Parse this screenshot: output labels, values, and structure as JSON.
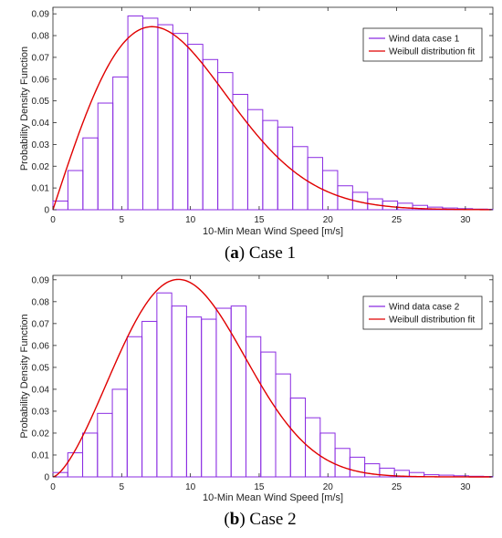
{
  "chart_data": [
    {
      "type": "bar",
      "xlabel": "10-Min Mean Wind Speed [m/s]",
      "ylabel": "Probability Density Function",
      "xlim": [
        0,
        32
      ],
      "ylim": [
        0,
        0.093
      ],
      "xticks": [
        "0",
        "5",
        "10",
        "15",
        "20",
        "25",
        "30"
      ],
      "yticks": [
        "0",
        "0.01",
        "0.02",
        "0.03",
        "0.04",
        "0.05",
        "0.06",
        "0.07",
        "0.08",
        "0.09"
      ],
      "bin_width": 1.09,
      "bin_start": 0,
      "series": [
        {
          "name": "Wind data case 1",
          "kind": "histogram",
          "color": "#8a2be2",
          "values": [
            0.004,
            0.018,
            0.033,
            0.049,
            0.061,
            0.089,
            0.088,
            0.085,
            0.081,
            0.076,
            0.069,
            0.063,
            0.053,
            0.046,
            0.041,
            0.038,
            0.029,
            0.024,
            0.018,
            0.011,
            0.008,
            0.005,
            0.004,
            0.003,
            0.002,
            0.0012,
            0.0008,
            0.0005,
            0.0003,
            0.0002
          ]
        },
        {
          "name": "Weibull distribution fit",
          "kind": "line",
          "color": "#e00000",
          "weibull": {
            "k": 2.0,
            "lambda": 10.2
          }
        }
      ],
      "legend_position": "top-right",
      "caption_label": "a",
      "caption_text": "Case 1"
    },
    {
      "type": "bar",
      "xlabel": "10-Min Mean Wind Speed [m/s]",
      "ylabel": "Probability Density Function",
      "xlim": [
        0,
        32
      ],
      "ylim": [
        0,
        0.092
      ],
      "xticks": [
        "0",
        "5",
        "10",
        "15",
        "20",
        "25",
        "30"
      ],
      "yticks": [
        "0",
        "0.01",
        "0.02",
        "0.03",
        "0.04",
        "0.05",
        "0.06",
        "0.07",
        "0.08",
        "0.09"
      ],
      "bin_width": 1.08,
      "bin_start": 0,
      "series": [
        {
          "name": "Wind data case 2",
          "kind": "histogram",
          "color": "#8a2be2",
          "values": [
            0.002,
            0.011,
            0.02,
            0.029,
            0.04,
            0.064,
            0.071,
            0.084,
            0.078,
            0.073,
            0.072,
            0.077,
            0.078,
            0.064,
            0.057,
            0.047,
            0.036,
            0.027,
            0.02,
            0.013,
            0.009,
            0.006,
            0.004,
            0.003,
            0.002,
            0.001,
            0.0008,
            0.0005,
            0.0003,
            0.0002
          ]
        },
        {
          "name": "Weibull distribution fit",
          "kind": "line",
          "color": "#e00000",
          "weibull": {
            "k": 2.5,
            "lambda": 11.2
          }
        }
      ],
      "legend_position": "top-right",
      "caption_label": "b",
      "caption_text": "Case 2"
    }
  ]
}
